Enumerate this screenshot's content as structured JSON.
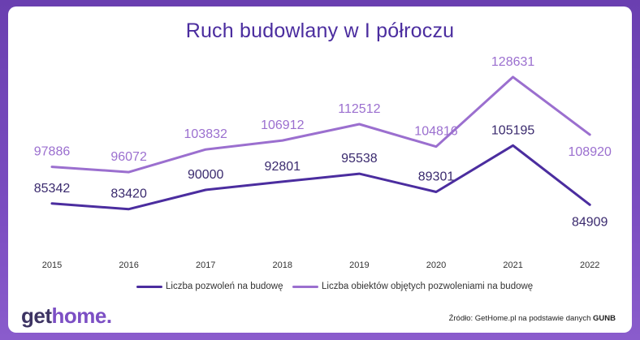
{
  "chart_data": {
    "type": "line",
    "title": "Ruch budowlany w I półroczu",
    "categories": [
      "2015",
      "2016",
      "2017",
      "2018",
      "2019",
      "2020",
      "2021",
      "2022"
    ],
    "ylim": [
      80000,
      130000
    ],
    "grid": false,
    "legend_position": "bottom",
    "series": [
      {
        "name": "Liczba pozwoleń na budowę",
        "color": "#4b2d9f",
        "values": [
          85342,
          83420,
          90000,
          92801,
          95538,
          89301,
          105195,
          84909
        ],
        "labels": [
          "85342",
          "83420",
          "90000",
          "92801",
          "95538",
          "89301",
          "105195",
          "84909"
        ]
      },
      {
        "name": "Liczba obiektów objętych pozwoleniami na budowę",
        "color": "#9b6fcf",
        "values": [
          97886,
          96072,
          103832,
          106912,
          112512,
          104816,
          128631,
          108920
        ],
        "labels": [
          "97886",
          "96072",
          "103832",
          "106912",
          "112512",
          "104816",
          "128631",
          "108920"
        ]
      }
    ]
  },
  "brand": {
    "part1": "get",
    "part2": "home."
  },
  "source": {
    "prefix": "Źródło: GetHome.pl na podstawie danych",
    "bold": "GUNB"
  }
}
